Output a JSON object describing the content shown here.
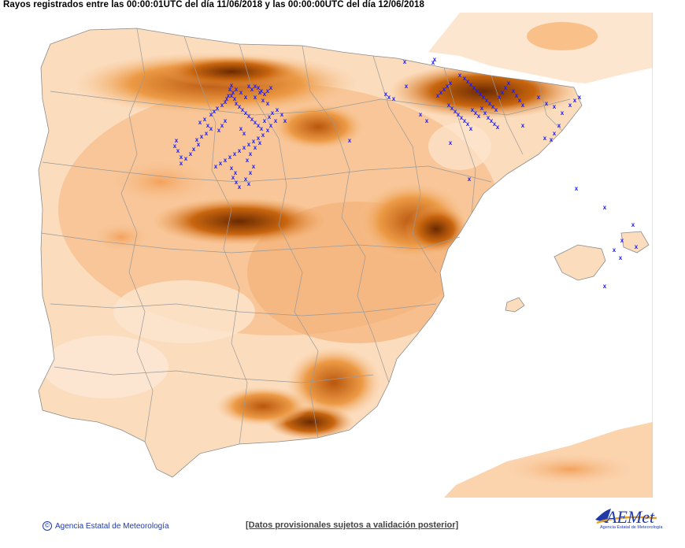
{
  "title": "Rayos registrados entre las 00:00:01UTC del día 11/06/2018 y las 00:00:00UTC del día 12/06/2018",
  "footer": {
    "copyright_symbol": "©",
    "agency": "Agencia Estatal de Meteorología",
    "disclaimer": "[Datos provisionales sujetos a validación posterior]"
  },
  "logo": {
    "name": "AEMet",
    "subtitle": "Agencia Estatal de Meteorología"
  },
  "legend": {
    "marker_symbol": "x",
    "marker_color": "#1a1aff"
  },
  "colors": {
    "sea": "#ffffff",
    "land_low": "#fde9d6",
    "land_mid": "#f8b57a",
    "land_high": "#e07b1e",
    "land_peak": "#8a3a05",
    "borders": "#8c8c8c"
  }
}
